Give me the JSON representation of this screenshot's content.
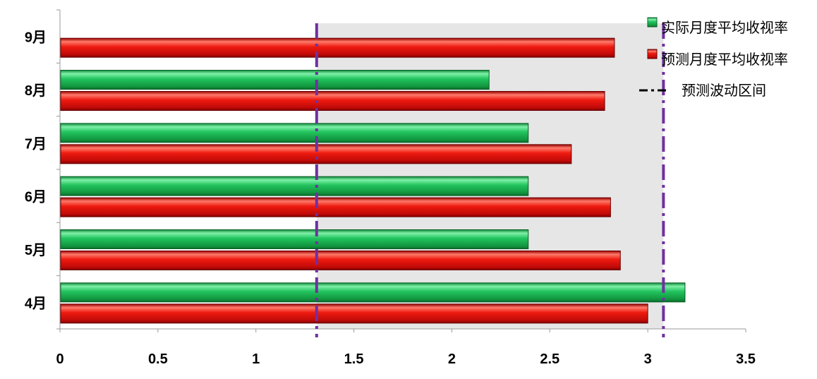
{
  "chart_data": {
    "type": "bar",
    "orientation": "horizontal",
    "categories": [
      "4月",
      "5月",
      "6月",
      "7月",
      "8月",
      "9月"
    ],
    "series": [
      {
        "name": "实际月度平均收视率",
        "color": "#1db954",
        "values": [
          3.19,
          2.39,
          2.39,
          2.39,
          2.19,
          null
        ]
      },
      {
        "name": "预测月度平均收视率",
        "color": "#e01010",
        "values": [
          3.0,
          2.86,
          2.81,
          2.61,
          2.78,
          2.83
        ]
      }
    ],
    "band": {
      "name": "预测波动区间",
      "low": 1.31,
      "high": 3.08,
      "line_color": "#7030a0",
      "fill_color": "#e6e6e6"
    },
    "xlim": [
      0,
      3.5
    ],
    "x_ticks": [
      "0",
      "0.5",
      "1",
      "1.5",
      "2",
      "2.5",
      "3",
      "3.5"
    ],
    "grid": false,
    "legend_position": "top-right"
  }
}
